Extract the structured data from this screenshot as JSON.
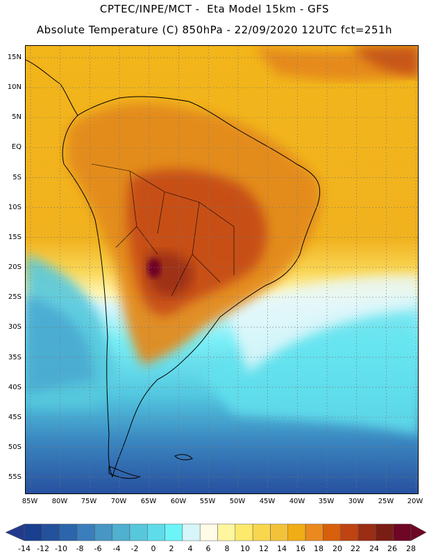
{
  "header": {
    "line1": "CPTEC/INPE/MCT -  Eta Model 15km - GFS",
    "line2": "Absolute Temperature (C) 850hPa - 22/09/2020 12UTC fct=251h"
  },
  "axes": {
    "lat_labels": [
      "15N",
      "10N",
      "5N",
      "EQ",
      "5S",
      "10S",
      "15S",
      "20S",
      "25S",
      "30S",
      "35S",
      "40S",
      "45S",
      "50S",
      "55S"
    ],
    "lon_labels": [
      "85W",
      "80W",
      "75W",
      "70W",
      "65W",
      "60W",
      "55W",
      "50W",
      "45W",
      "40W",
      "35W",
      "30W",
      "25W",
      "20W"
    ]
  },
  "colorbar": {
    "labels": [
      "-14",
      "-12",
      "-10",
      "-8",
      "-6",
      "-4",
      "-2",
      "0",
      "2",
      "4",
      "6",
      "8",
      "10",
      "12",
      "14",
      "16",
      "18",
      "20",
      "22",
      "24",
      "26",
      "28"
    ],
    "colors": [
      "#1a3f8f",
      "#24519c",
      "#2c65ab",
      "#3a7ebb",
      "#4796c4",
      "#4fb0cf",
      "#57c7dc",
      "#5fdcea",
      "#6cf4f6",
      "#d6f6fa",
      "#fffbe6",
      "#fff6a0",
      "#fdea6c",
      "#f8d74f",
      "#f3c23b",
      "#f0ad16",
      "#ea8a1e",
      "#d85f0c",
      "#bf4412",
      "#9a2d14",
      "#7a1d14",
      "#6e0626"
    ],
    "under_color": "#233a8c",
    "over_color": "#6e0626"
  }
}
